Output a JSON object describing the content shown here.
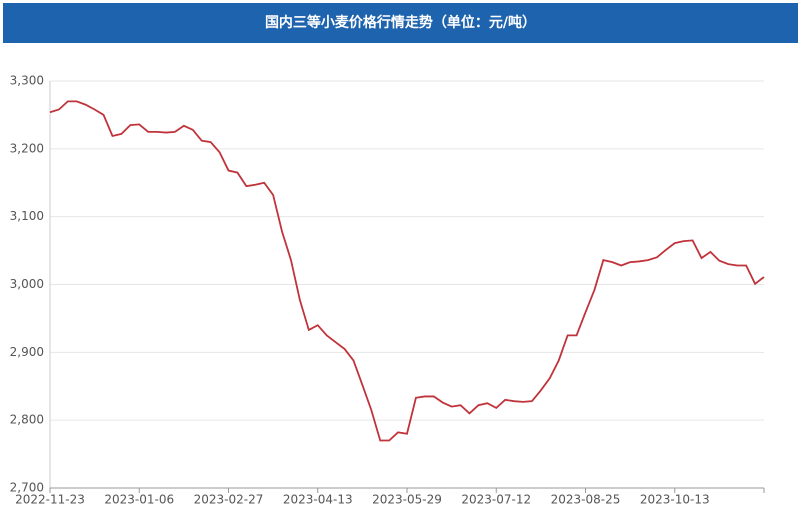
{
  "chart_data": {
    "type": "line",
    "title": "国内三等小麦价格行情走势（单位：元/吨）",
    "categories": [
      "2022-11-23",
      null,
      null,
      null,
      null,
      null,
      null,
      null,
      null,
      null,
      "2023-01-06",
      null,
      null,
      null,
      null,
      null,
      null,
      null,
      null,
      null,
      "2023-02-27",
      null,
      null,
      null,
      null,
      null,
      null,
      null,
      null,
      null,
      "2023-04-13",
      null,
      null,
      null,
      null,
      null,
      null,
      null,
      null,
      null,
      "2023-05-29",
      null,
      null,
      null,
      null,
      null,
      null,
      null,
      null,
      null,
      "2023-07-12",
      null,
      null,
      null,
      null,
      null,
      null,
      null,
      null,
      null,
      "2023-08-25",
      null,
      null,
      null,
      null,
      null,
      null,
      null,
      null,
      null,
      "2023-10-13",
      null,
      null,
      null,
      null,
      null,
      null,
      null,
      null,
      null,
      null
    ],
    "series": [
      {
        "color": "#c0333a",
        "values": [
          3254,
          3258,
          3270,
          3270,
          3265,
          3258,
          3250,
          3219,
          3222,
          3235,
          3236,
          3225,
          3225,
          3224,
          3225,
          3234,
          3228,
          3212,
          3210,
          3195,
          3168,
          3165,
          3145,
          3147,
          3150,
          3132,
          3078,
          3036,
          2977,
          2933,
          2940,
          2925,
          2915,
          2905,
          2888,
          2852,
          2815,
          2770,
          2770,
          2782,
          2780,
          2833,
          2835,
          2835,
          2826,
          2820,
          2822,
          2810,
          2822,
          2825,
          2818,
          2830,
          2828,
          2827,
          2828,
          2844,
          2862,
          2888,
          2925,
          2925,
          2959,
          2992,
          3036,
          3033,
          3028,
          3033,
          3034,
          3036,
          3040,
          3051,
          3061,
          3064,
          3065,
          3039,
          3048,
          3035,
          3030,
          3028,
          3028,
          3001,
          3011
        ]
      }
    ],
    "ylim": [
      2700,
      3300
    ],
    "yticks": [
      {
        "value": 2700,
        "label": "2,700"
      },
      {
        "value": 2800,
        "label": "2,800"
      },
      {
        "value": 2900,
        "label": "2,900"
      },
      {
        "value": 3000,
        "label": "3,000"
      },
      {
        "value": 3100,
        "label": "3,100"
      },
      {
        "value": 3200,
        "label": "3,200"
      },
      {
        "value": 3300,
        "label": "3,300"
      }
    ],
    "grid": true
  }
}
